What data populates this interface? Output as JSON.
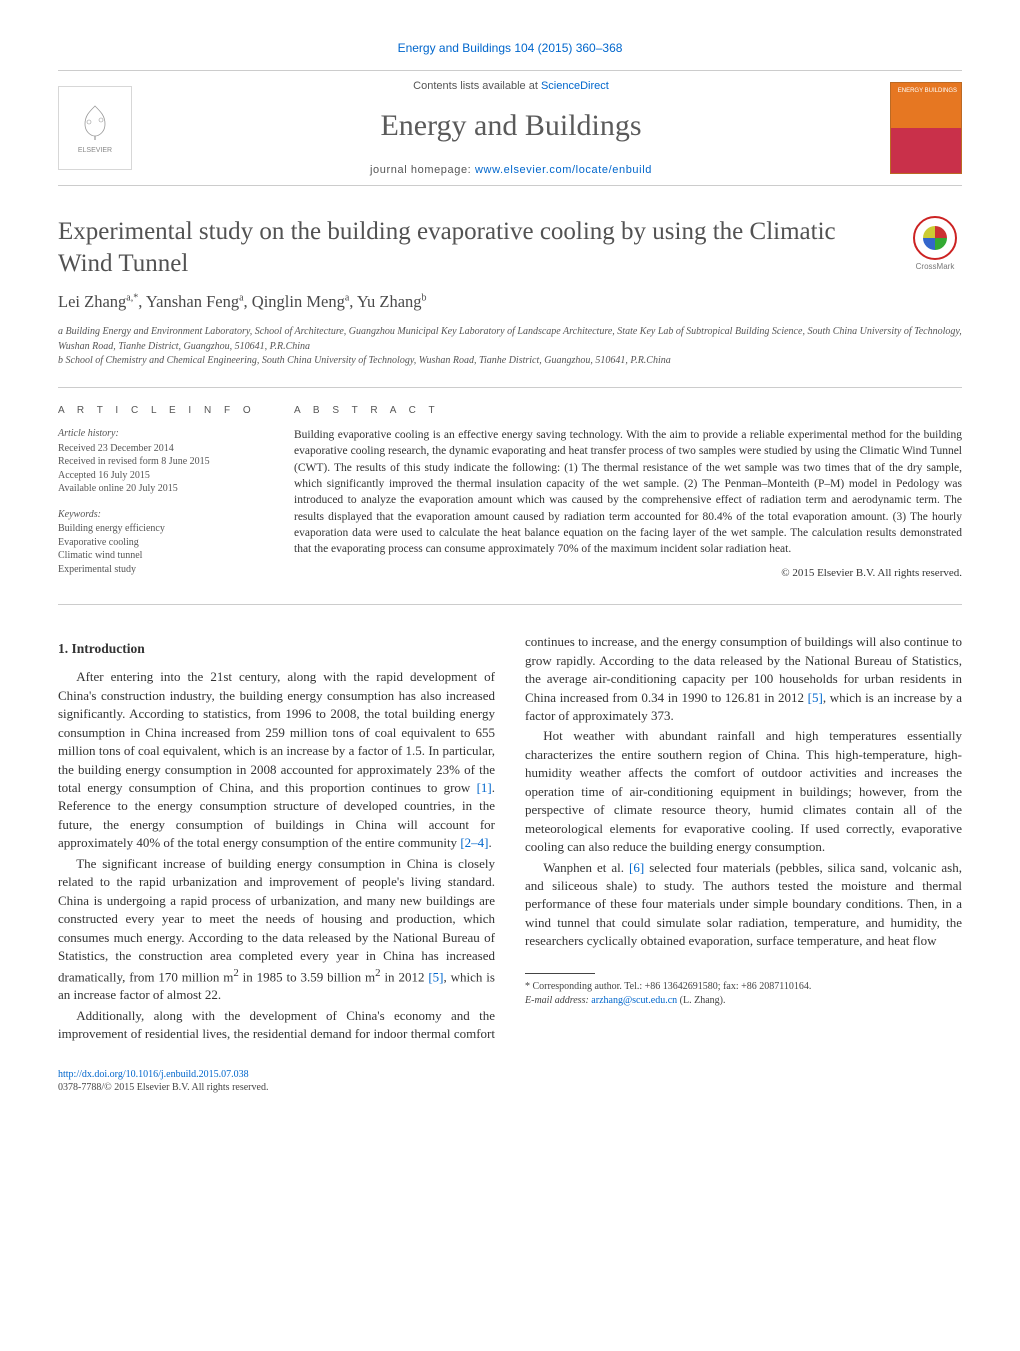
{
  "citation": "Energy and Buildings 104 (2015) 360–368",
  "header": {
    "contents_prefix": "Contents lists available at ",
    "contents_link_text": "ScienceDirect",
    "journal_name": "Energy and Buildings",
    "homepage_prefix": "journal homepage: ",
    "homepage_link_text": "www.elsevier.com/locate/enbuild",
    "publisher_name": "ELSEVIER",
    "cover_text": "ENERGY\nBUILDINGS"
  },
  "crossmark_label": "CrossMark",
  "title": "Experimental study on the building evaporative cooling by using the Climatic Wind Tunnel",
  "authors_html": "Lei Zhang<sup>a,*</sup>, Yanshan Feng<sup>a</sup>, Qinglin Meng<sup>a</sup>, Yu Zhang<sup>b</sup>",
  "affiliations": [
    "a Building Energy and Environment Laboratory, School of Architecture, Guangzhou Municipal Key Laboratory of Landscape Architecture, State Key Lab of Subtropical Building Science, South China University of Technology, Wushan Road, Tianhe District, Guangzhou, 510641, P.R.China",
    "b School of Chemistry and Chemical Engineering, South China University of Technology, Wushan Road, Tianhe District, Guangzhou, 510641, P.R.China"
  ],
  "info": {
    "heading": "A R T I C L E   I N F O",
    "history_label": "Article history:",
    "history": [
      "Received 23 December 2014",
      "Received in revised form 8 June 2015",
      "Accepted 16 July 2015",
      "Available online 20 July 2015"
    ],
    "keywords_label": "Keywords:",
    "keywords": [
      "Building energy efficiency",
      "Evaporative cooling",
      "Climatic wind tunnel",
      "Experimental study"
    ]
  },
  "abstract": {
    "heading": "A B S T R A C T",
    "text": "Building evaporative cooling is an effective energy saving technology. With the aim to provide a reliable experimental method for the building evaporative cooling research, the dynamic evaporating and heat transfer process of two samples were studied by using the Climatic Wind Tunnel (CWT). The results of this study indicate the following: (1) The thermal resistance of the wet sample was two times that of the dry sample, which significantly improved the thermal insulation capacity of the wet sample. (2) The Penman–Monteith (P–M) model in Pedology was introduced to analyze the evaporation amount which was caused by the comprehensive effect of radiation term and aerodynamic term. The results displayed that the evaporation amount caused by radiation term accounted for 80.4% of the total evaporation amount. (3) The hourly evaporation data were used to calculate the heat balance equation on the facing layer of the wet sample. The calculation results demonstrated that the evaporating process can consume approximately 70% of the maximum incident solar radiation heat.",
    "copyright": "© 2015 Elsevier B.V. All rights reserved."
  },
  "body": {
    "section_number": "1.",
    "section_title": "Introduction",
    "paragraphs": [
      "After entering into the 21st century, along with the rapid development of China's construction industry, the building energy consumption has also increased significantly. According to statistics, from 1996 to 2008, the total building energy consumption in China increased from 259 million tons of coal equivalent to 655 million tons of coal equivalent, which is an increase by a factor of 1.5. In particular, the building energy consumption in 2008 accounted for approximately 23% of the total energy consumption of China, and this proportion continues to grow <span class=\"ref-link\">[1]</span>. Reference to the energy consumption structure of developed countries, in the future, the energy consumption of buildings in China will account for approximately 40% of the total energy consumption of the entire community <span class=\"ref-link\">[2–4]</span>.",
      "The significant increase of building energy consumption in China is closely related to the rapid urbanization and improvement of people's living standard. China is undergoing a rapid process of urbanization, and many new buildings are constructed every year to meet the needs of housing and production, which consumes much energy. According to the data released by the National Bureau of Statistics, the construction area completed every year in China has increased dramatically, from 170 million m<sup>2</sup> in 1985 to 3.59 billion m<sup>2</sup> in 2012 <span class=\"ref-link\">[5]</span>, which is an increase factor of almost 22.",
      "Additionally, along with the development of China's economy and the improvement of residential lives, the residential demand for indoor thermal comfort continues to increase, and the energy consumption of buildings will also continue to grow rapidly. According to the data released by the National Bureau of Statistics, the average air-conditioning capacity per 100 households for urban residents in China increased from 0.34 in 1990 to 126.81 in 2012 <span class=\"ref-link\">[5]</span>, which is an increase by a factor of approximately 373.",
      "Hot weather with abundant rainfall and high temperatures essentially characterizes the entire southern region of China. This high-temperature, high-humidity weather affects the comfort of outdoor activities and increases the operation time of air-conditioning equipment in buildings; however, from the perspective of climate resource theory, humid climates contain all of the meteorological elements for evaporative cooling. If used correctly, evaporative cooling can also reduce the building energy consumption.",
      "Wanphen et al. <span class=\"ref-link\">[6]</span> selected four materials (pebbles, silica sand, volcanic ash, and siliceous shale) to study. The authors tested the moisture and thermal performance of these four materials under simple boundary conditions. Then, in a wind tunnel that could simulate solar radiation, temperature, and humidity, the researchers cyclically obtained evaporation, surface temperature, and heat flow"
    ]
  },
  "footnotes": {
    "corresponding": "* Corresponding author. Tel.: +86 13642691580; fax: +86 2087110164.",
    "email_label": "E-mail address: ",
    "email": "arzhang@scut.edu.cn",
    "email_owner": " (L. Zhang)."
  },
  "footer": {
    "doi": "http://dx.doi.org/10.1016/j.enbuild.2015.07.038",
    "issn_line": "0378-7788/© 2015 Elsevier B.V. All rights reserved."
  },
  "colors": {
    "link": "#0066cc",
    "rule": "#cccccc",
    "title_gray": "#525252",
    "cover_top": "#e67722",
    "cover_bottom": "#c9304a"
  }
}
